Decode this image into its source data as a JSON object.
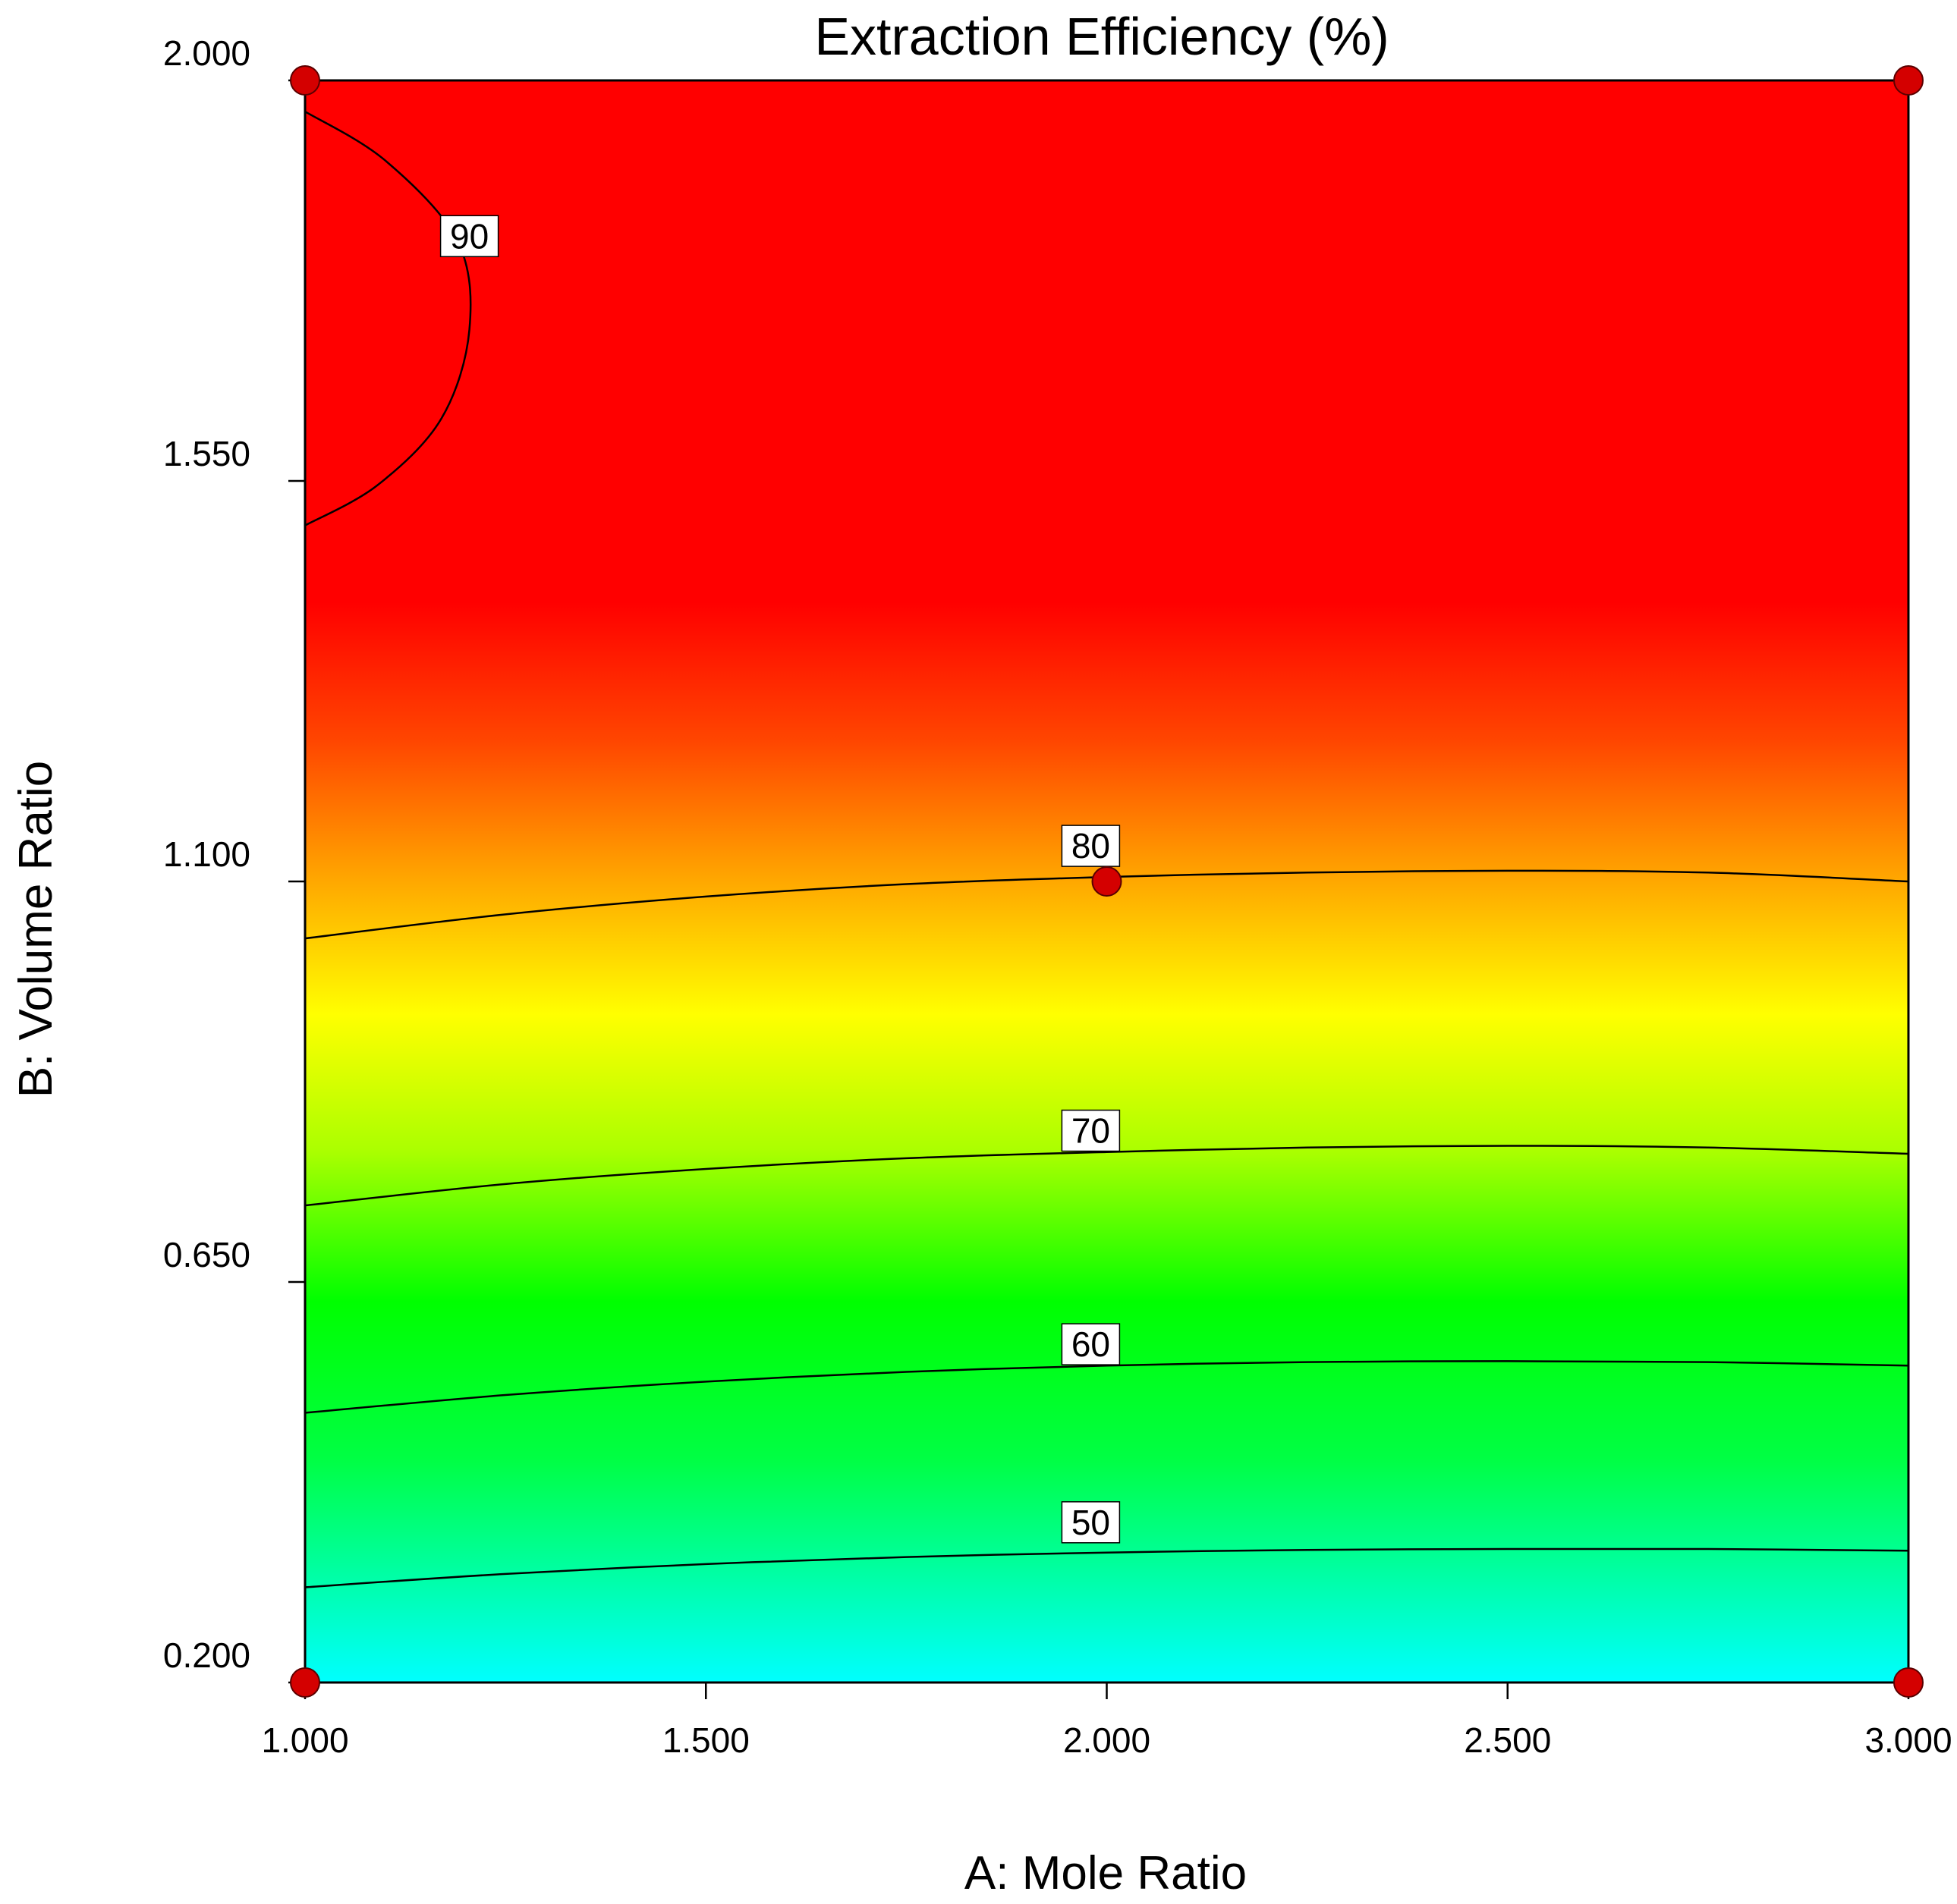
{
  "chart_data": {
    "type": "contour",
    "title": "Extraction Efficiency (%)",
    "xlabel": "A: Mole Ratio",
    "ylabel": "B: Volume Ratio",
    "xlim": [
      1.0,
      3.0
    ],
    "ylim": [
      0.2,
      2.0
    ],
    "x_ticks": [
      {
        "value": 1.0,
        "label": "1.000"
      },
      {
        "value": 1.5,
        "label": "1.500"
      },
      {
        "value": 2.0,
        "label": "2.000"
      },
      {
        "value": 2.5,
        "label": "2.500"
      },
      {
        "value": 3.0,
        "label": "3.000"
      }
    ],
    "y_ticks": [
      {
        "value": 0.2,
        "label": "0.200"
      },
      {
        "value": 0.65,
        "label": "0.650"
      },
      {
        "value": 1.1,
        "label": "1.100"
      },
      {
        "value": 1.55,
        "label": "1.550"
      },
      {
        "value": 2.0,
        "label": "2.000"
      }
    ],
    "color_scale": [
      {
        "level": 42,
        "color": "#00ffff"
      },
      {
        "level": 55,
        "color": "#00ff44"
      },
      {
        "level": 63,
        "color": "#00ff00"
      },
      {
        "level": 70,
        "color": "#aaff00"
      },
      {
        "level": 75,
        "color": "#ffff00"
      },
      {
        "level": 80,
        "color": "#ffa500"
      },
      {
        "level": 85,
        "color": "#ff4500"
      },
      {
        "level": 90,
        "color": "#ff0000"
      },
      {
        "level": 95,
        "color": "#ff0000"
      }
    ],
    "contours": [
      {
        "level": 90,
        "label": "90",
        "label_point": {
          "x": 1.205,
          "y": 1.825
        },
        "points": [
          [
            1.0,
            1.965
          ],
          [
            1.1,
            1.91
          ],
          [
            1.19,
            1.82
          ],
          [
            1.205,
            1.72
          ],
          [
            1.17,
            1.62
          ],
          [
            1.09,
            1.545
          ],
          [
            1.0,
            1.5
          ]
        ]
      },
      {
        "level": 80,
        "label": "80",
        "label_point": {
          "x": 1.98,
          "y": 1.14
        },
        "points": [
          [
            1.0,
            1.036
          ],
          [
            1.25,
            1.063
          ],
          [
            1.5,
            1.083
          ],
          [
            1.75,
            1.097
          ],
          [
            2.0,
            1.105
          ],
          [
            2.25,
            1.11
          ],
          [
            2.5,
            1.112
          ],
          [
            2.75,
            1.11
          ],
          [
            3.0,
            1.1
          ]
        ]
      },
      {
        "level": 70,
        "label": "70",
        "label_point": {
          "x": 1.98,
          "y": 0.82
        },
        "points": [
          [
            1.0,
            0.736
          ],
          [
            1.25,
            0.76
          ],
          [
            1.5,
            0.777
          ],
          [
            1.75,
            0.789
          ],
          [
            2.0,
            0.796
          ],
          [
            2.25,
            0.801
          ],
          [
            2.5,
            0.803
          ],
          [
            2.75,
            0.801
          ],
          [
            3.0,
            0.794
          ]
        ]
      },
      {
        "level": 60,
        "label": "60",
        "label_point": {
          "x": 1.98,
          "y": 0.58
        },
        "points": [
          [
            1.0,
            0.503
          ],
          [
            1.25,
            0.523
          ],
          [
            1.5,
            0.538
          ],
          [
            1.75,
            0.549
          ],
          [
            2.0,
            0.556
          ],
          [
            2.25,
            0.56
          ],
          [
            2.5,
            0.561
          ],
          [
            2.75,
            0.56
          ],
          [
            3.0,
            0.556
          ]
        ]
      },
      {
        "level": 50,
        "label": "50",
        "label_point": {
          "x": 1.98,
          "y": 0.38
        },
        "points": [
          [
            1.0,
            0.307
          ],
          [
            1.25,
            0.322
          ],
          [
            1.5,
            0.333
          ],
          [
            1.75,
            0.341
          ],
          [
            2.0,
            0.346
          ],
          [
            2.25,
            0.349
          ],
          [
            2.5,
            0.35
          ],
          [
            2.75,
            0.35
          ],
          [
            3.0,
            0.348
          ]
        ]
      }
    ],
    "design_points": [
      {
        "x": 1.0,
        "y": 2.0
      },
      {
        "x": 3.0,
        "y": 2.0
      },
      {
        "x": 2.0,
        "y": 1.1
      },
      {
        "x": 1.0,
        "y": 0.2
      },
      {
        "x": 3.0,
        "y": 0.2
      }
    ],
    "design_point_color": "#d40000",
    "contour_line_color": "#000000",
    "axis_color": "#000000"
  }
}
